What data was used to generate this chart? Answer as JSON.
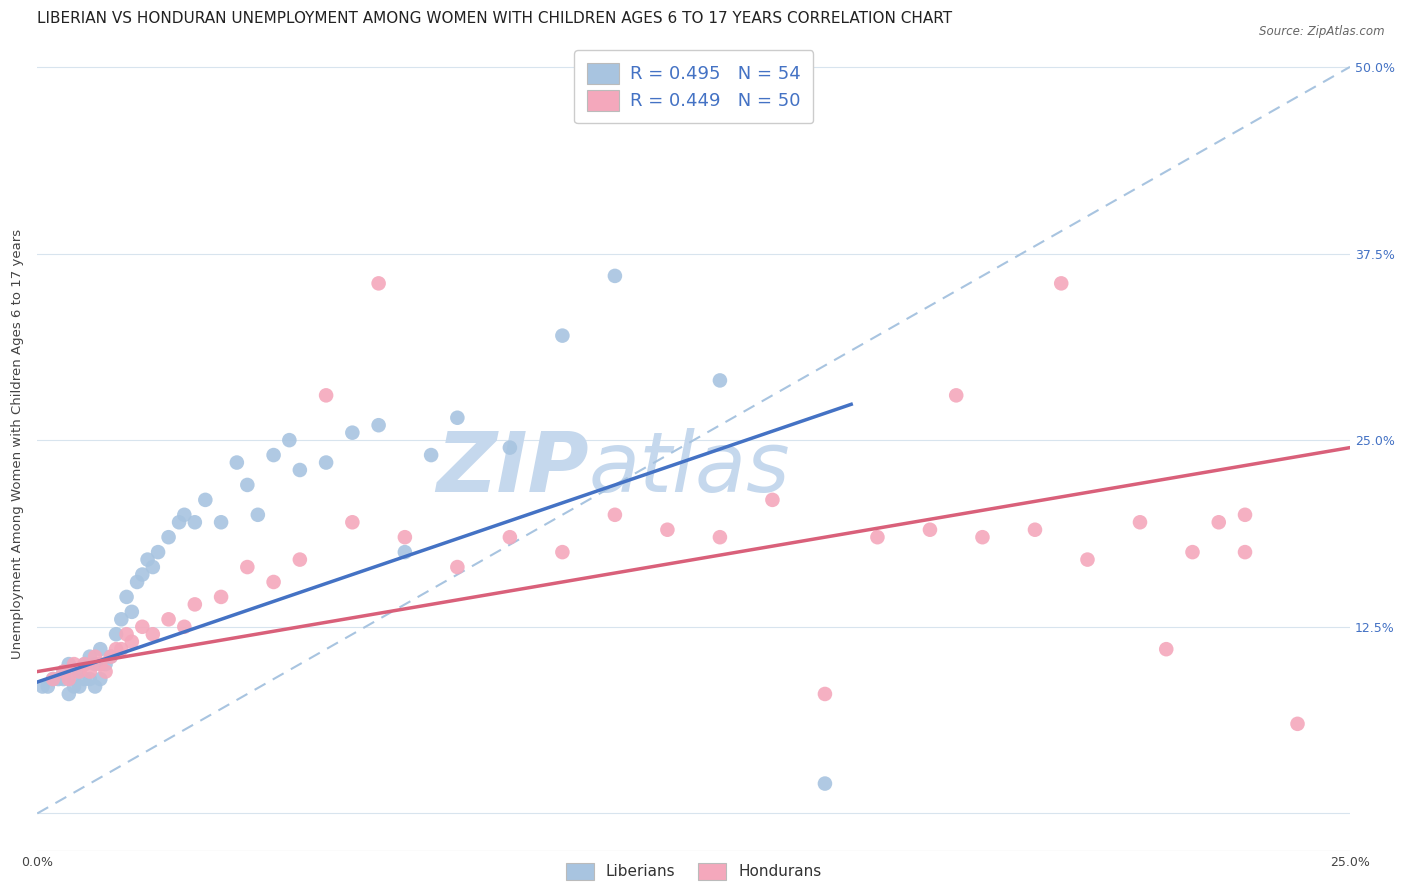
{
  "title": "LIBERIAN VS HONDURAN UNEMPLOYMENT AMONG WOMEN WITH CHILDREN AGES 6 TO 17 YEARS CORRELATION CHART",
  "source": "Source: ZipAtlas.com",
  "ylabel": "Unemployment Among Women with Children Ages 6 to 17 years",
  "xlim": [
    0.0,
    0.25
  ],
  "ylim": [
    -0.025,
    0.52
  ],
  "yticks": [
    0.0,
    0.125,
    0.25,
    0.375,
    0.5
  ],
  "ytick_labels": [
    "",
    "12.5%",
    "25.0%",
    "37.5%",
    "50.0%"
  ],
  "xticks": [
    0.0,
    0.05,
    0.1,
    0.15,
    0.2,
    0.25
  ],
  "xtick_labels": [
    "0.0%",
    "",
    "",
    "",
    "",
    "25.0%"
  ],
  "liberian_R": 0.495,
  "liberian_N": 54,
  "honduran_R": 0.449,
  "honduran_N": 50,
  "liberian_color": "#a8c4e0",
  "honduran_color": "#f4a8bc",
  "liberian_line_color": "#4472c4",
  "honduran_line_color": "#d9607a",
  "diagonal_line_color": "#a8c4e0",
  "watermark_color": "#ccdaeb",
  "background_color": "#ffffff",
  "grid_color": "#d8e4ee",
  "liberian_x": [
    0.001,
    0.002,
    0.003,
    0.004,
    0.005,
    0.005,
    0.006,
    0.006,
    0.007,
    0.007,
    0.008,
    0.008,
    0.009,
    0.009,
    0.01,
    0.01,
    0.011,
    0.011,
    0.012,
    0.012,
    0.013,
    0.014,
    0.015,
    0.016,
    0.017,
    0.018,
    0.019,
    0.02,
    0.021,
    0.022,
    0.023,
    0.025,
    0.027,
    0.028,
    0.03,
    0.032,
    0.035,
    0.038,
    0.04,
    0.042,
    0.045,
    0.048,
    0.05,
    0.055,
    0.06,
    0.065,
    0.07,
    0.075,
    0.08,
    0.09,
    0.1,
    0.11,
    0.13,
    0.15
  ],
  "liberian_y": [
    0.085,
    0.085,
    0.09,
    0.09,
    0.09,
    0.095,
    0.08,
    0.1,
    0.085,
    0.09,
    0.085,
    0.095,
    0.09,
    0.1,
    0.09,
    0.105,
    0.085,
    0.1,
    0.09,
    0.11,
    0.1,
    0.105,
    0.12,
    0.13,
    0.145,
    0.135,
    0.155,
    0.16,
    0.17,
    0.165,
    0.175,
    0.185,
    0.195,
    0.2,
    0.195,
    0.21,
    0.195,
    0.235,
    0.22,
    0.2,
    0.24,
    0.25,
    0.23,
    0.235,
    0.255,
    0.26,
    0.175,
    0.24,
    0.265,
    0.245,
    0.32,
    0.36,
    0.29,
    0.02
  ],
  "honduran_x": [
    0.003,
    0.005,
    0.006,
    0.007,
    0.008,
    0.009,
    0.01,
    0.011,
    0.012,
    0.013,
    0.014,
    0.015,
    0.016,
    0.017,
    0.018,
    0.02,
    0.022,
    0.025,
    0.028,
    0.03,
    0.035,
    0.04,
    0.045,
    0.05,
    0.055,
    0.06,
    0.065,
    0.07,
    0.08,
    0.09,
    0.1,
    0.11,
    0.12,
    0.13,
    0.14,
    0.15,
    0.16,
    0.17,
    0.175,
    0.18,
    0.19,
    0.195,
    0.2,
    0.21,
    0.215,
    0.22,
    0.225,
    0.23,
    0.23,
    0.24
  ],
  "honduran_y": [
    0.09,
    0.095,
    0.09,
    0.1,
    0.095,
    0.1,
    0.095,
    0.105,
    0.1,
    0.095,
    0.105,
    0.11,
    0.11,
    0.12,
    0.115,
    0.125,
    0.12,
    0.13,
    0.125,
    0.14,
    0.145,
    0.165,
    0.155,
    0.17,
    0.28,
    0.195,
    0.355,
    0.185,
    0.165,
    0.185,
    0.175,
    0.2,
    0.19,
    0.185,
    0.21,
    0.08,
    0.185,
    0.19,
    0.28,
    0.185,
    0.19,
    0.355,
    0.17,
    0.195,
    0.11,
    0.175,
    0.195,
    0.175,
    0.2,
    0.06
  ],
  "title_fontsize": 11,
  "axis_label_fontsize": 9.5,
  "tick_label_fontsize": 9,
  "legend_fontsize": 13
}
